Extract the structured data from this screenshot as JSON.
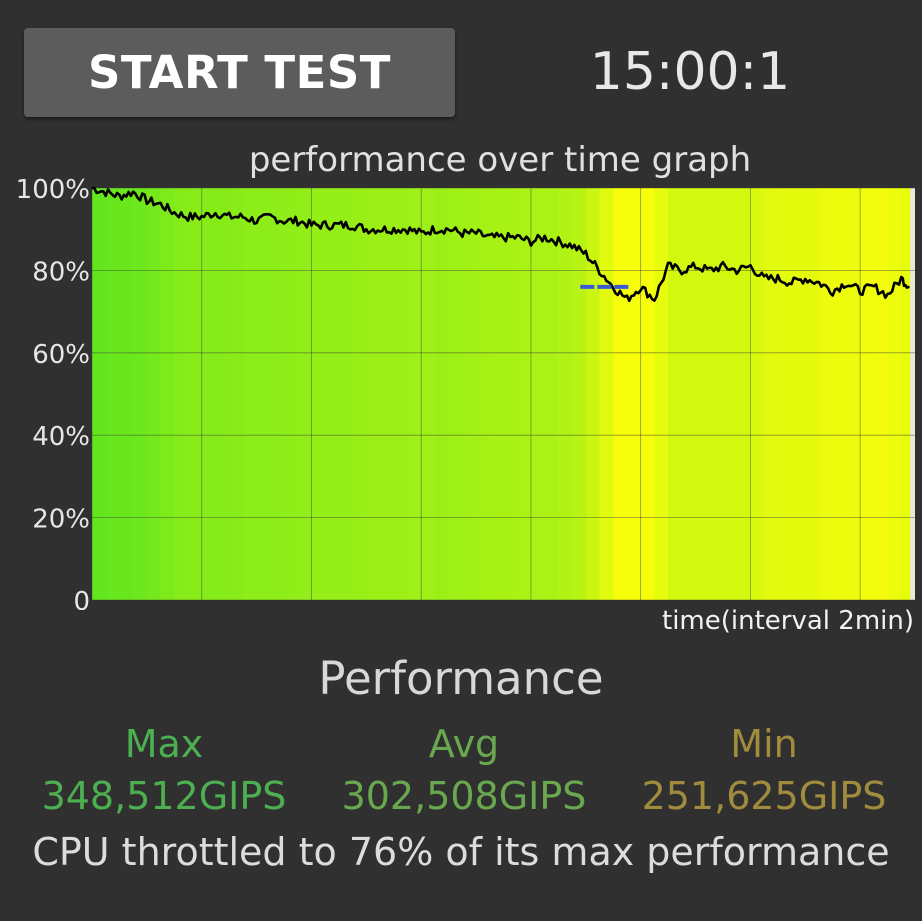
{
  "header": {
    "start_button_label": "START TEST",
    "timer": "15:00:1"
  },
  "colors": {
    "background": "#303030",
    "plot_background": "#ebe8d8",
    "line": "#000000",
    "avg_marker": "#3a5bd8",
    "max_color": "#4caf50",
    "avg_color": "#6aa84f",
    "min_color": "#a08c3c"
  },
  "chart_data": {
    "type": "line",
    "title": "performance over time graph",
    "xlabel": "time(interval 2min)",
    "ylabel": "",
    "ylim": [
      0,
      100
    ],
    "xlim": [
      0,
      15
    ],
    "y_ticks": [
      "0",
      "20%",
      "40%",
      "60%",
      "80%",
      "100%"
    ],
    "grid": true,
    "x_minutes": [
      0,
      0.25,
      0.5,
      0.75,
      1,
      1.25,
      1.5,
      1.75,
      2,
      2.25,
      2.5,
      2.75,
      3,
      3.25,
      3.5,
      3.75,
      4,
      4.25,
      4.5,
      4.75,
      5,
      5.25,
      5.5,
      5.75,
      6,
      6.25,
      6.5,
      6.75,
      7,
      7.25,
      7.5,
      7.75,
      8,
      8.25,
      8.5,
      8.75,
      9,
      9.25,
      9.5,
      9.75,
      10,
      10.25,
      10.5,
      10.75,
      11,
      11.25,
      11.5,
      11.75,
      12,
      12.25,
      12.5,
      12.75,
      13,
      13.25,
      13.5,
      13.75,
      14,
      14.25,
      14.5,
      14.75,
      14.9
    ],
    "performance_percent": [
      100,
      99,
      98,
      99,
      97,
      96,
      94,
      93,
      93,
      94,
      93,
      93,
      92,
      93,
      92,
      92,
      91,
      91,
      91,
      91,
      90,
      90,
      90,
      90,
      89,
      90,
      90,
      89,
      89,
      88,
      88,
      88,
      87,
      88,
      87,
      86,
      84,
      80,
      76,
      73,
      76,
      73,
      81,
      80,
      81,
      80,
      81,
      80,
      81,
      78,
      78,
      77,
      78,
      77,
      75,
      77,
      75,
      76,
      74,
      78,
      76
    ],
    "avg_marker_percent": 76
  },
  "performance": {
    "title": "Performance",
    "max_label": "Max",
    "max_value": "348,512GIPS",
    "avg_label": "Avg",
    "avg_value": "302,508GIPS",
    "min_label": "Min",
    "min_value": "251,625GIPS",
    "throttle_message": "CPU throttled to 76% of its max performance"
  }
}
